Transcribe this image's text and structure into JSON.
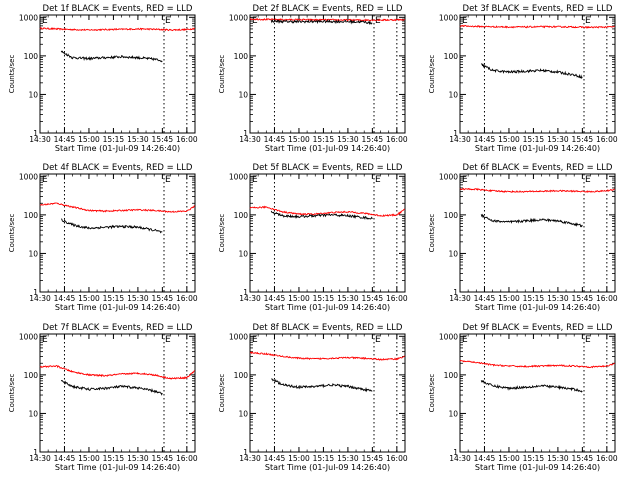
{
  "figure": {
    "xlabel": "Start Time (01-Jul-09 14:26:40)",
    "ylabel": "Counts/sec",
    "x_ticks": [
      "14:30",
      "14:45",
      "15:00",
      "15:15",
      "15:30",
      "15:45",
      "16:00"
    ],
    "y_ticks": [
      "1",
      "10",
      "100",
      "1000"
    ],
    "edge_marker": "E",
    "colors": {
      "events": "#000000",
      "lld": "#ff0000",
      "axes": "#000000"
    }
  },
  "chart_data": [
    {
      "type": "line",
      "title": "Det 1f BLACK = Events, RED = LLD",
      "x_range_minutes": [
        "14:30",
        "16:05"
      ],
      "ylim": [
        1,
        1000
      ],
      "y_scale": "log",
      "markers_x": [
        "14:45",
        "15:46",
        "16:00"
      ],
      "series": [
        {
          "name": "Events",
          "color": "#000000",
          "x": [
            "14:43",
            "14:50",
            "15:00",
            "15:10",
            "15:20",
            "15:30",
            "15:40",
            "15:45"
          ],
          "values": [
            130,
            90,
            85,
            90,
            95,
            90,
            82,
            75
          ]
        },
        {
          "name": "LLD",
          "color": "#ff0000",
          "x": [
            "14:30",
            "14:40",
            "14:50",
            "15:00",
            "15:10",
            "15:20",
            "15:30",
            "15:40",
            "15:50",
            "16:00",
            "16:05"
          ],
          "values": [
            520,
            500,
            480,
            470,
            480,
            490,
            500,
            490,
            470,
            480,
            520
          ]
        }
      ]
    },
    {
      "type": "line",
      "title": "Det 2f BLACK = Events, RED = LLD",
      "x_range_minutes": [
        "14:30",
        "16:05"
      ],
      "ylim": [
        1,
        1000
      ],
      "y_scale": "log",
      "markers_x": [
        "14:45",
        "15:46",
        "16:00"
      ],
      "series": [
        {
          "name": "Events",
          "color": "#000000",
          "x": [
            "14:43",
            "14:50",
            "15:00",
            "15:10",
            "15:20",
            "15:30",
            "15:40",
            "15:45"
          ],
          "values": [
            800,
            780,
            770,
            780,
            780,
            770,
            760,
            700
          ]
        },
        {
          "name": "LLD",
          "color": "#ff0000",
          "x": [
            "14:30",
            "14:40",
            "14:50",
            "15:00",
            "15:10",
            "15:20",
            "15:30",
            "15:40",
            "15:50",
            "16:00",
            "16:05"
          ],
          "values": [
            900,
            880,
            870,
            870,
            860,
            860,
            850,
            850,
            850,
            860,
            870
          ]
        }
      ]
    },
    {
      "type": "line",
      "title": "Det 3f BLACK = Events, RED = LLD",
      "x_range_minutes": [
        "14:30",
        "16:05"
      ],
      "ylim": [
        1,
        1000
      ],
      "y_scale": "log",
      "markers_x": [
        "14:45",
        "15:46",
        "16:00"
      ],
      "series": [
        {
          "name": "Events",
          "color": "#000000",
          "x": [
            "14:43",
            "14:50",
            "15:00",
            "15:10",
            "15:20",
            "15:30",
            "15:40",
            "15:45"
          ],
          "values": [
            60,
            42,
            38,
            40,
            42,
            38,
            32,
            28
          ]
        },
        {
          "name": "LLD",
          "color": "#ff0000",
          "x": [
            "14:30",
            "14:40",
            "14:50",
            "15:00",
            "15:10",
            "15:20",
            "15:30",
            "15:40",
            "15:50",
            "16:00",
            "16:05"
          ],
          "values": [
            600,
            580,
            570,
            560,
            560,
            570,
            570,
            560,
            550,
            560,
            570
          ]
        }
      ]
    },
    {
      "type": "line",
      "title": "Det 4f BLACK = Events, RED = LLD",
      "x_range_minutes": [
        "14:30",
        "16:05"
      ],
      "ylim": [
        1,
        1000
      ],
      "y_scale": "log",
      "markers_x": [
        "14:45",
        "15:46",
        "16:00"
      ],
      "series": [
        {
          "name": "Events",
          "color": "#000000",
          "x": [
            "14:43",
            "14:50",
            "15:00",
            "15:10",
            "15:20",
            "15:30",
            "15:40",
            "15:45"
          ],
          "values": [
            75,
            55,
            45,
            48,
            50,
            48,
            40,
            35
          ]
        },
        {
          "name": "LLD",
          "color": "#ff0000",
          "x": [
            "14:30",
            "14:40",
            "14:50",
            "15:00",
            "15:10",
            "15:20",
            "15:30",
            "15:40",
            "15:50",
            "16:00",
            "16:05"
          ],
          "values": [
            180,
            200,
            160,
            130,
            125,
            130,
            135,
            130,
            120,
            125,
            170
          ]
        }
      ]
    },
    {
      "type": "line",
      "title": "Det 5f BLACK = Events, RED = LLD",
      "x_range_minutes": [
        "14:30",
        "16:05"
      ],
      "ylim": [
        1,
        1000
      ],
      "y_scale": "log",
      "markers_x": [
        "14:45",
        "15:46",
        "16:00"
      ],
      "series": [
        {
          "name": "Events",
          "color": "#000000",
          "x": [
            "14:43",
            "14:50",
            "15:00",
            "15:10",
            "15:20",
            "15:30",
            "15:40",
            "15:45"
          ],
          "values": [
            120,
            95,
            90,
            95,
            100,
            95,
            85,
            80
          ]
        },
        {
          "name": "LLD",
          "color": "#ff0000",
          "x": [
            "14:30",
            "14:40",
            "14:50",
            "15:00",
            "15:10",
            "15:20",
            "15:30",
            "15:40",
            "15:50",
            "16:00",
            "16:05"
          ],
          "values": [
            150,
            160,
            120,
            105,
            105,
            115,
            120,
            110,
            95,
            100,
            140
          ]
        }
      ]
    },
    {
      "type": "line",
      "title": "Det 6f BLACK = Events, RED = LLD",
      "x_range_minutes": [
        "14:30",
        "16:05"
      ],
      "ylim": [
        1,
        1000
      ],
      "y_scale": "log",
      "markers_x": [
        "14:45",
        "15:46",
        "16:00"
      ],
      "series": [
        {
          "name": "Events",
          "color": "#000000",
          "x": [
            "14:43",
            "14:50",
            "15:00",
            "15:10",
            "15:20",
            "15:30",
            "15:40",
            "15:45"
          ],
          "values": [
            100,
            70,
            65,
            70,
            75,
            70,
            58,
            52
          ]
        },
        {
          "name": "LLD",
          "color": "#ff0000",
          "x": [
            "14:30",
            "14:40",
            "14:50",
            "15:00",
            "15:10",
            "15:20",
            "15:30",
            "15:40",
            "15:50",
            "16:00",
            "16:05"
          ],
          "values": [
            470,
            460,
            420,
            400,
            400,
            410,
            420,
            410,
            400,
            420,
            460
          ]
        }
      ]
    },
    {
      "type": "line",
      "title": "Det 7f BLACK = Events, RED = LLD",
      "x_range_minutes": [
        "14:30",
        "16:05"
      ],
      "ylim": [
        1,
        1000
      ],
      "y_scale": "log",
      "markers_x": [
        "14:45",
        "15:46",
        "16:00"
      ],
      "series": [
        {
          "name": "Events",
          "color": "#000000",
          "x": [
            "14:43",
            "14:50",
            "15:00",
            "15:10",
            "15:20",
            "15:30",
            "15:40",
            "15:45"
          ],
          "values": [
            70,
            50,
            42,
            45,
            50,
            46,
            38,
            32
          ]
        },
        {
          "name": "LLD",
          "color": "#ff0000",
          "x": [
            "14:30",
            "14:40",
            "14:50",
            "15:00",
            "15:10",
            "15:20",
            "15:30",
            "15:40",
            "15:50",
            "16:00",
            "16:05"
          ],
          "values": [
            160,
            170,
            120,
            100,
            95,
            105,
            110,
            100,
            80,
            85,
            130
          ]
        }
      ]
    },
    {
      "type": "line",
      "title": "Det 8f BLACK = Events, RED = LLD",
      "x_range_minutes": [
        "14:30",
        "16:05"
      ],
      "ylim": [
        1,
        1000
      ],
      "y_scale": "log",
      "markers_x": [
        "14:45",
        "15:46",
        "16:00"
      ],
      "series": [
        {
          "name": "Events",
          "color": "#000000",
          "x": [
            "14:43",
            "14:50",
            "15:00",
            "15:10",
            "15:20",
            "15:30",
            "15:40",
            "15:45"
          ],
          "values": [
            80,
            55,
            48,
            50,
            55,
            50,
            42,
            38
          ]
        },
        {
          "name": "LLD",
          "color": "#ff0000",
          "x": [
            "14:30",
            "14:40",
            "14:50",
            "15:00",
            "15:10",
            "15:20",
            "15:30",
            "15:40",
            "15:50",
            "16:00",
            "16:05"
          ],
          "values": [
            380,
            350,
            300,
            270,
            260,
            270,
            280,
            270,
            250,
            260,
            300
          ]
        }
      ]
    },
    {
      "type": "line",
      "title": "Det 9f BLACK = Events, RED = LLD",
      "x_range_minutes": [
        "14:30",
        "16:05"
      ],
      "ylim": [
        1,
        1000
      ],
      "y_scale": "log",
      "markers_x": [
        "14:45",
        "15:46",
        "16:00"
      ],
      "series": [
        {
          "name": "Events",
          "color": "#000000",
          "x": [
            "14:43",
            "14:50",
            "15:00",
            "15:10",
            "15:20",
            "15:30",
            "15:40",
            "15:45"
          ],
          "values": [
            70,
            52,
            45,
            48,
            52,
            48,
            42,
            38
          ]
        },
        {
          "name": "LLD",
          "color": "#ff0000",
          "x": [
            "14:30",
            "14:40",
            "14:50",
            "15:00",
            "15:10",
            "15:20",
            "15:30",
            "15:40",
            "15:50",
            "16:00",
            "16:05"
          ],
          "values": [
            230,
            210,
            180,
            170,
            165,
            170,
            175,
            170,
            160,
            170,
            200
          ]
        }
      ]
    }
  ]
}
